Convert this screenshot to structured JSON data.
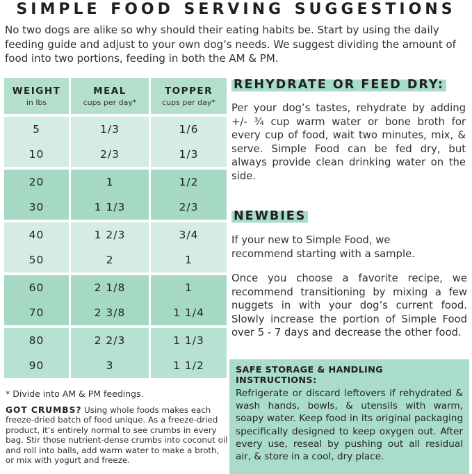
{
  "title": "SIMPLE FOOD SERVING SUGGESTIONS",
  "intro": "No two dogs are alike so why should their eating habits be. Start by using the daily feeding guide and adjust to your own dog’s needs. We suggest dividing the amount of food into two portions, feeding in both the AM & PM.",
  "table": {
    "headers": [
      {
        "title": "WEIGHT",
        "subtitle": "in lbs"
      },
      {
        "title": "MEAL",
        "subtitle": "cups per day*"
      },
      {
        "title": "TOPPER",
        "subtitle": "cups per day*"
      }
    ],
    "groups": [
      {
        "rows": [
          [
            "5",
            "1/3",
            "1/6"
          ],
          [
            "10",
            "2/3",
            "1/3"
          ]
        ]
      },
      {
        "rows": [
          [
            "20",
            "1",
            "1/2"
          ],
          [
            "30",
            "1 1/3",
            "2/3"
          ]
        ]
      },
      {
        "rows": [
          [
            "40",
            "1 2/3",
            "3/4"
          ],
          [
            "50",
            "2",
            "1"
          ]
        ]
      },
      {
        "rows": [
          [
            "60",
            "2 1/8",
            "1"
          ],
          [
            "70",
            "2 3/8",
            "1 1/4"
          ]
        ]
      },
      {
        "rows": [
          [
            "80",
            "2 2/3",
            "1 1/3"
          ],
          [
            "90",
            "3",
            "1 1/2"
          ]
        ]
      }
    ],
    "footnote": "* Divide into AM & PM feedings."
  },
  "crumbs": {
    "heading": "GOT CRUMBS?",
    "body": " Using whole foods makes each freeze-dried batch of food unique. As a freeze-dried product, it’s entirely normal to see crumbs in every bag. Stir those nutrient-dense crumbs into coconut oil and roll into balls, add warm water to make a broth, or mix with yogurt and freeze."
  },
  "rehydrate": {
    "heading": "REHYDRATE OR FEED DRY:",
    "body": "Per your dog’s tastes, rehydrate by adding +/- ¾ cup warm water or bone broth for every cup of food, wait two minutes, mix, & serve. Simple Food can be fed dry, but always provide clean drinking water on the side."
  },
  "newbies": {
    "heading": "NEWBIES",
    "para1": "If your new to Simple Food, we recommend starting with a sample.",
    "para2": "Once you choose a favorite recipe, we recommend transitioning by mixing a few nuggets in with your dog’s current food. Slowly increase the portion of Simple Food over 5 - 7 days and decrease the other food."
  },
  "storage": {
    "heading": "SAFE STORAGE & HANDLING INSTRUCTIONS:",
    "body": "Refrigerate or discard leftovers if rehydrated & wash hands, bowls, & utensils with warm, soapy water. Keep food in its original packaging specifically designed to keep oxygen out. After every use, reseal by pushing out all residual air, & store in a cool, dry place."
  },
  "colors": {
    "mint_dark": "#a6d9c4",
    "mint_medium": "#b7e1d0",
    "mint_light": "#d5ece3",
    "header_mint": "#b3dfcc",
    "highlight": "#a9dcc8",
    "storage_bg": "#aaddc9",
    "text": "#2e2e2e"
  }
}
